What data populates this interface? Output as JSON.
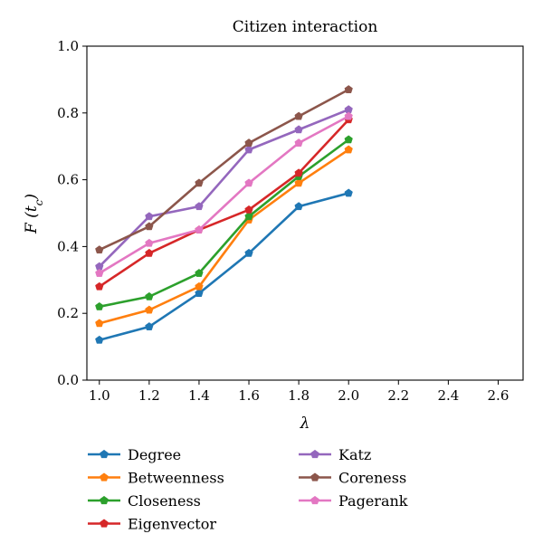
{
  "chart_data": {
    "type": "line",
    "title": "Citizen interaction",
    "xlabel": "λ",
    "ylabel": "F (t",
    "ylabel_subscript": "c",
    "ylabel_close": ")",
    "xlim": [
      0.95,
      2.7
    ],
    "ylim": [
      0.0,
      1.0
    ],
    "xticks": [
      "1.0",
      "1.2",
      "1.4",
      "1.6",
      "1.8",
      "2.0",
      "2.2",
      "2.4",
      "2.6"
    ],
    "yticks": [
      "0.0",
      "0.2",
      "0.4",
      "0.6",
      "0.8",
      "1.0"
    ],
    "grid": false,
    "legend_position": "bottom",
    "marker": "pentagon",
    "x": [
      1.0,
      1.2,
      1.4,
      1.6,
      1.8,
      2.0
    ],
    "series": [
      {
        "name": "Degree",
        "color": "#1f77b4",
        "values": [
          0.12,
          0.16,
          0.26,
          0.38,
          0.52,
          0.56
        ]
      },
      {
        "name": "Betweenness",
        "color": "#ff7f0e",
        "values": [
          0.17,
          0.21,
          0.28,
          0.48,
          0.59,
          0.69
        ]
      },
      {
        "name": "Closeness",
        "color": "#2ca02c",
        "values": [
          0.22,
          0.25,
          0.32,
          0.49,
          0.61,
          0.72
        ]
      },
      {
        "name": "Eigenvector",
        "color": "#d62728",
        "values": [
          0.28,
          0.38,
          0.45,
          0.51,
          0.62,
          0.78
        ]
      },
      {
        "name": "Katz",
        "color": "#9467bd",
        "values": [
          0.34,
          0.49,
          0.52,
          0.69,
          0.75,
          0.81
        ]
      },
      {
        "name": "Coreness",
        "color": "#8c564b",
        "values": [
          0.39,
          0.46,
          0.59,
          0.71,
          0.79,
          0.87
        ]
      },
      {
        "name": "Pagerank",
        "color": "#e377c2",
        "values": [
          0.32,
          0.41,
          0.45,
          0.59,
          0.71,
          0.79
        ]
      }
    ]
  }
}
